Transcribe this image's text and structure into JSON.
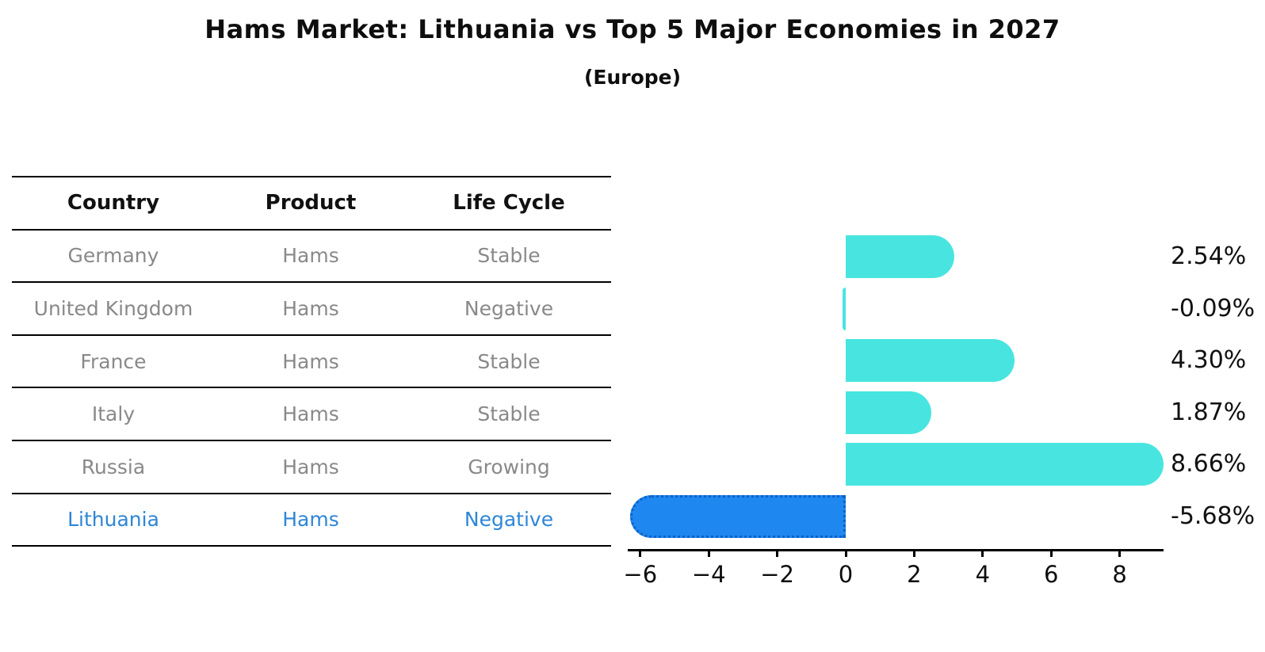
{
  "header": {
    "title": "Hams Market: Lithuania vs Top 5 Major Economies in 2027",
    "subtitle": "(Europe)"
  },
  "table": {
    "columns": [
      "Country",
      "Product",
      "Life Cycle"
    ],
    "rows": [
      {
        "country": "Germany",
        "product": "Hams",
        "life_cycle": "Stable",
        "highlight": false
      },
      {
        "country": "United Kingdom",
        "product": "Hams",
        "life_cycle": "Negative",
        "highlight": false
      },
      {
        "country": "France",
        "product": "Hams",
        "life_cycle": "Stable",
        "highlight": false
      },
      {
        "country": "Italy",
        "product": "Hams",
        "life_cycle": "Stable",
        "highlight": false
      },
      {
        "country": "Russia",
        "product": "Hams",
        "life_cycle": "Growing",
        "highlight": false
      },
      {
        "country": "Lithuania",
        "product": "Hams",
        "life_cycle": "Negative",
        "highlight": true
      }
    ]
  },
  "chart_data": {
    "type": "bar",
    "orientation": "horizontal",
    "title": "Hams Market: Lithuania vs Top 5 Major Economies in 2027 (Europe)",
    "categories": [
      "Germany",
      "United Kingdom",
      "France",
      "Italy",
      "Russia",
      "Lithuania"
    ],
    "values": [
      2.54,
      -0.09,
      4.3,
      1.87,
      8.66,
      -5.68
    ],
    "value_labels": [
      "2.54%",
      "-0.09%",
      "4.30%",
      "1.87%",
      "8.66%",
      "-5.68%"
    ],
    "x_ticks": [
      -6,
      -4,
      -2,
      0,
      2,
      4,
      6,
      8
    ],
    "x_tick_labels": [
      "−6",
      "−4",
      "−2",
      "0",
      "2",
      "4",
      "6",
      "8"
    ],
    "xlim": [
      -6.37,
      9.28
    ],
    "grid": false,
    "legend": false,
    "bar_color": "#48e5e0",
    "highlight_color": "#1e87f0",
    "highlight_border_color": "#0e62c8",
    "highlight_index": 5
  }
}
